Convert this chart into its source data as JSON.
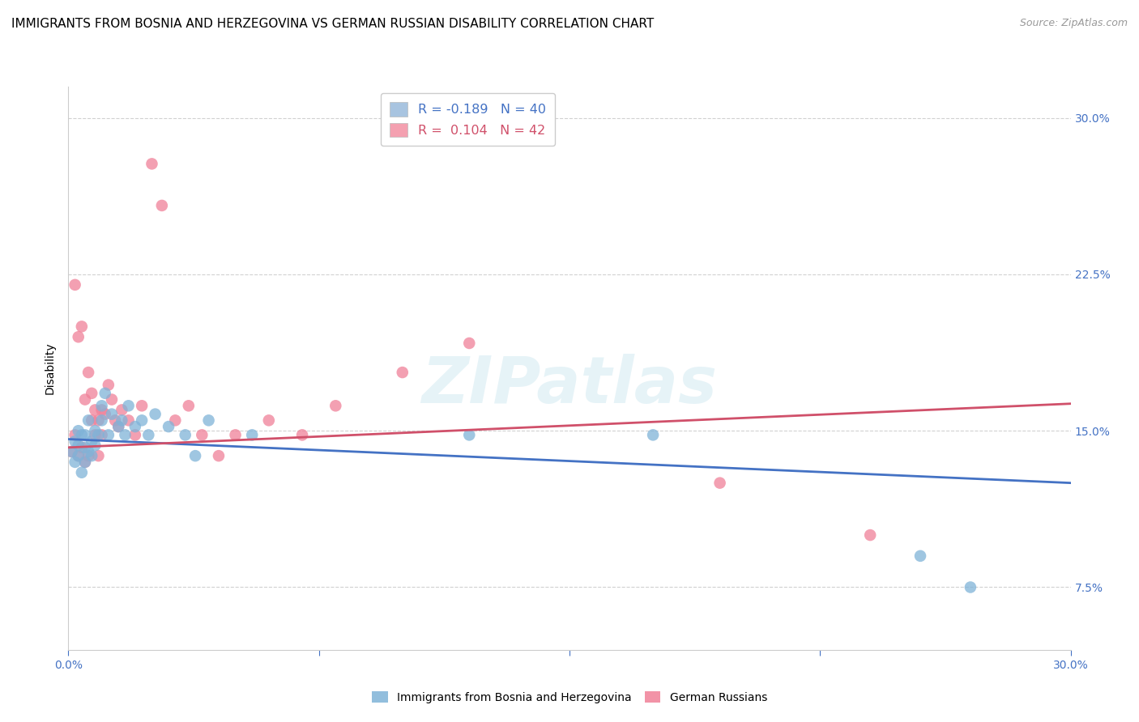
{
  "title": "IMMIGRANTS FROM BOSNIA AND HERZEGOVINA VS GERMAN RUSSIAN DISABILITY CORRELATION CHART",
  "source": "Source: ZipAtlas.com",
  "ylabel": "Disability",
  "xlim": [
    0.0,
    0.3
  ],
  "ylim": [
    0.045,
    0.315
  ],
  "ytick_vals": [
    0.075,
    0.15,
    0.225,
    0.3
  ],
  "xtick_vals": [
    0.0,
    0.075,
    0.15,
    0.225,
    0.3
  ],
  "legend_r_blue": "R = -0.189",
  "legend_n_blue": "N = 40",
  "legend_r_pink": "R =  0.104",
  "legend_n_pink": "N = 42",
  "bosnia_x": [
    0.001,
    0.002,
    0.002,
    0.003,
    0.003,
    0.003,
    0.004,
    0.004,
    0.005,
    0.005,
    0.005,
    0.006,
    0.006,
    0.007,
    0.007,
    0.008,
    0.008,
    0.009,
    0.01,
    0.01,
    0.011,
    0.012,
    0.013,
    0.015,
    0.016,
    0.017,
    0.018,
    0.02,
    0.022,
    0.024,
    0.026,
    0.03,
    0.035,
    0.038,
    0.042,
    0.055,
    0.12,
    0.175,
    0.255,
    0.27
  ],
  "bosnia_y": [
    0.14,
    0.145,
    0.135,
    0.138,
    0.143,
    0.15,
    0.13,
    0.148,
    0.135,
    0.142,
    0.148,
    0.14,
    0.155,
    0.138,
    0.145,
    0.15,
    0.143,
    0.148,
    0.155,
    0.162,
    0.168,
    0.148,
    0.158,
    0.152,
    0.155,
    0.148,
    0.162,
    0.152,
    0.155,
    0.148,
    0.158,
    0.152,
    0.148,
    0.138,
    0.155,
    0.148,
    0.148,
    0.148,
    0.09,
    0.075
  ],
  "german_x": [
    0.001,
    0.002,
    0.002,
    0.003,
    0.003,
    0.004,
    0.004,
    0.005,
    0.005,
    0.006,
    0.006,
    0.007,
    0.007,
    0.008,
    0.008,
    0.009,
    0.009,
    0.01,
    0.01,
    0.011,
    0.012,
    0.013,
    0.014,
    0.015,
    0.016,
    0.018,
    0.02,
    0.022,
    0.025,
    0.028,
    0.032,
    0.036,
    0.04,
    0.045,
    0.05,
    0.06,
    0.07,
    0.08,
    0.1,
    0.12,
    0.195,
    0.24
  ],
  "german_y": [
    0.14,
    0.148,
    0.22,
    0.138,
    0.195,
    0.142,
    0.2,
    0.135,
    0.165,
    0.138,
    0.178,
    0.155,
    0.168,
    0.148,
    0.16,
    0.138,
    0.155,
    0.148,
    0.16,
    0.158,
    0.172,
    0.165,
    0.155,
    0.152,
    0.16,
    0.155,
    0.148,
    0.162,
    0.278,
    0.258,
    0.155,
    0.162,
    0.148,
    0.138,
    0.148,
    0.155,
    0.148,
    0.162,
    0.178,
    0.192,
    0.125,
    0.1
  ],
  "bosnia_color": "#7fb3d8",
  "german_color": "#f08098",
  "bosnia_line_color": "#4472c4",
  "german_line_color": "#d0506a",
  "grid_color": "#cccccc",
  "bg_color": "#ffffff",
  "watermark": "ZIPatlas",
  "right_tick_color": "#4472c4",
  "title_fontsize": 11,
  "axis_label_fontsize": 10,
  "tick_fontsize": 10,
  "bottom_legend_blue": "Immigrants from Bosnia and Herzegovina",
  "bottom_legend_pink": "German Russians"
}
